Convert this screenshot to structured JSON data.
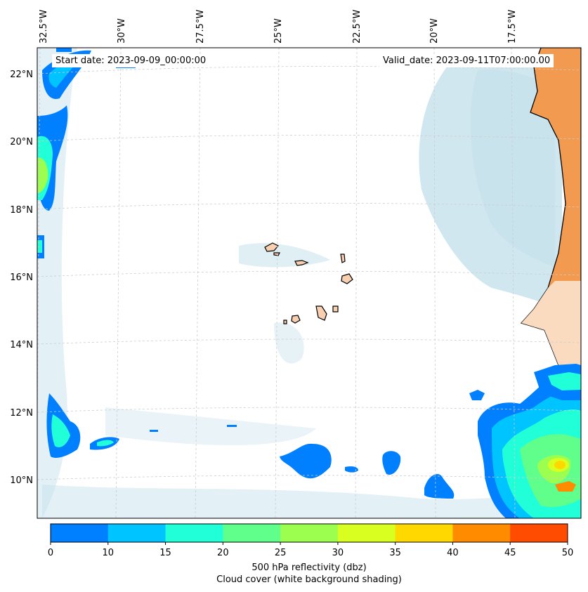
{
  "map": {
    "start_label": "Start date: 2023-09-09_00:00:00",
    "valid_label": "Valid_date: 2023-09-11T07:00:00.00",
    "lon_ticks": [
      "32.5°W",
      "30°W",
      "27.5°W",
      "25°W",
      "22.5°W",
      "20°W",
      "17.5°W"
    ],
    "lat_ticks": [
      "22°N",
      "20°N",
      "18°N",
      "16°N",
      "14°N",
      "12°N",
      "10°N"
    ]
  },
  "colorbar": {
    "title": "500 hPa reflectivity (dbz)",
    "subtitle": "Cloud cover (white background shading)",
    "tick_labels": [
      "0",
      "10",
      "15",
      "20",
      "25",
      "30",
      "35",
      "40",
      "45",
      "50"
    ],
    "colors": [
      "#0080ff",
      "#00c4ff",
      "#20ffd8",
      "#60ff8c",
      "#9cff50",
      "#d8ff20",
      "#ffd800",
      "#ff8c00",
      "#ff4c00"
    ]
  },
  "colors": {
    "cloud": "#c2dfea",
    "land_west_africa": "#f29a50",
    "land_islands": "#f8cfb0",
    "coast": "#000000",
    "gridline": "#cccccc"
  }
}
